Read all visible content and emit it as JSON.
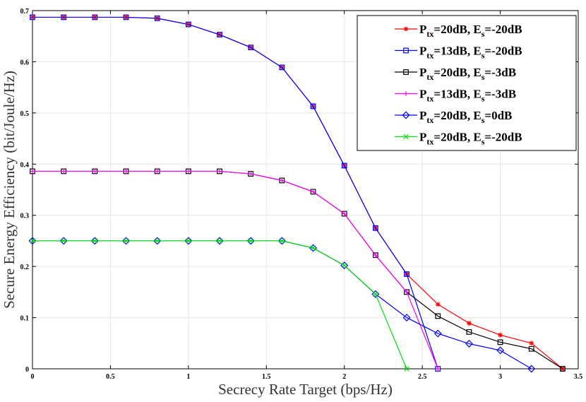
{
  "chart_data": {
    "type": "line",
    "title": "",
    "xlabel": "Secrecy Rate Target (bps/Hz)",
    "ylabel": "Secure Energy Efficiency (bit/Joule/Hz)",
    "xlim": [
      0,
      3.5
    ],
    "ylim": [
      0,
      0.7
    ],
    "grid": true,
    "legend_position": "top-right",
    "x_ticks": [
      "0",
      "0.5",
      "1",
      "1.5",
      "2",
      "2.5",
      "3",
      "3.5"
    ],
    "y_ticks": [
      "0",
      "0.1",
      "0.2",
      "0.3",
      "0.4",
      "0.5",
      "0.6",
      "0.7"
    ],
    "series": [
      {
        "name": "Ptx=20dB, Es=-20dB",
        "legend_main": "P",
        "legend_sub1": "tx",
        "legend_mid": "=20dB, E",
        "legend_sub2": "s",
        "legend_end": "=-20dB",
        "color": "#ff0000",
        "marker": "star",
        "x": [
          0,
          0.2,
          0.4,
          0.6,
          0.8,
          1.0,
          1.2,
          1.4,
          1.6,
          1.8,
          2.0,
          2.2,
          2.4,
          2.6,
          2.8,
          3.0,
          3.2,
          3.4
        ],
        "y": [
          0.687,
          0.687,
          0.687,
          0.687,
          0.685,
          0.673,
          0.653,
          0.628,
          0.589,
          0.513,
          0.397,
          0.275,
          0.185,
          0.126,
          0.089,
          0.066,
          0.05,
          0.0
        ]
      },
      {
        "name": "Ptx=13dB, Es=-20dB",
        "legend_main": "P",
        "legend_sub1": "tx",
        "legend_mid": "=13dB, E",
        "legend_sub2": "s",
        "legend_end": "=-20dB",
        "color": "#0000ff",
        "marker": "square",
        "x": [
          0,
          0.2,
          0.4,
          0.6,
          0.8,
          1.0,
          1.2,
          1.4,
          1.6,
          1.8,
          2.0,
          2.2,
          2.4,
          2.6
        ],
        "y": [
          0.687,
          0.687,
          0.687,
          0.687,
          0.685,
          0.673,
          0.653,
          0.628,
          0.589,
          0.513,
          0.397,
          0.275,
          0.185,
          0.0
        ]
      },
      {
        "name": "Ptx=20dB, Es=-3dB",
        "legend_main": "P",
        "legend_sub1": "tx",
        "legend_mid": "=20dB, E",
        "legend_sub2": "s",
        "legend_end": "=-3dB",
        "color": "#000000",
        "marker": "square",
        "x": [
          0,
          0.2,
          0.4,
          0.6,
          0.8,
          1.0,
          1.2,
          1.4,
          1.6,
          1.8,
          2.0,
          2.2,
          2.4,
          2.6,
          2.8,
          3.0,
          3.2,
          3.4
        ],
        "y": [
          0.386,
          0.386,
          0.386,
          0.386,
          0.386,
          0.386,
          0.386,
          0.381,
          0.368,
          0.346,
          0.303,
          0.222,
          0.15,
          0.103,
          0.072,
          0.052,
          0.039,
          0.0
        ]
      },
      {
        "name": "Ptx=13dB, Es=-3dB",
        "legend_main": "P",
        "legend_sub1": "tx",
        "legend_mid": "=13dB, E",
        "legend_sub2": "s",
        "legend_end": "=-3dB",
        "color": "#ff00ff",
        "marker": "plus",
        "x": [
          0,
          0.2,
          0.4,
          0.6,
          0.8,
          1.0,
          1.2,
          1.4,
          1.6,
          1.8,
          2.0,
          2.2,
          2.4,
          2.6
        ],
        "y": [
          0.386,
          0.386,
          0.386,
          0.386,
          0.386,
          0.386,
          0.386,
          0.381,
          0.368,
          0.346,
          0.303,
          0.222,
          0.15,
          0.0
        ]
      },
      {
        "name": "Ptx=20dB, Es=0dB",
        "legend_main": "P",
        "legend_sub1": "tx",
        "legend_mid": "=20dB, E",
        "legend_sub2": "s",
        "legend_end": "=0dB",
        "color": "#0000ff",
        "marker": "diamond",
        "x": [
          0,
          0.2,
          0.4,
          0.6,
          0.8,
          1.0,
          1.2,
          1.4,
          1.6,
          1.8,
          2.0,
          2.2,
          2.4,
          2.6,
          2.8,
          3.0,
          3.2
        ],
        "y": [
          0.25,
          0.25,
          0.25,
          0.25,
          0.25,
          0.25,
          0.25,
          0.25,
          0.25,
          0.236,
          0.202,
          0.146,
          0.1,
          0.069,
          0.049,
          0.036,
          0.0
        ]
      },
      {
        "name": "Ptx=20dB, Es=-20dB",
        "legend_main": "P",
        "legend_sub1": "tx",
        "legend_mid": "=20dB, E",
        "legend_sub2": "s",
        "legend_end": "=-20dB",
        "color": "#00dd00",
        "marker": "x",
        "x": [
          0,
          0.2,
          0.4,
          0.6,
          0.8,
          1.0,
          1.2,
          1.4,
          1.6,
          1.8,
          2.0,
          2.2,
          2.4
        ],
        "y": [
          0.25,
          0.25,
          0.25,
          0.25,
          0.25,
          0.25,
          0.25,
          0.25,
          0.25,
          0.236,
          0.202,
          0.146,
          0.0
        ]
      }
    ]
  }
}
